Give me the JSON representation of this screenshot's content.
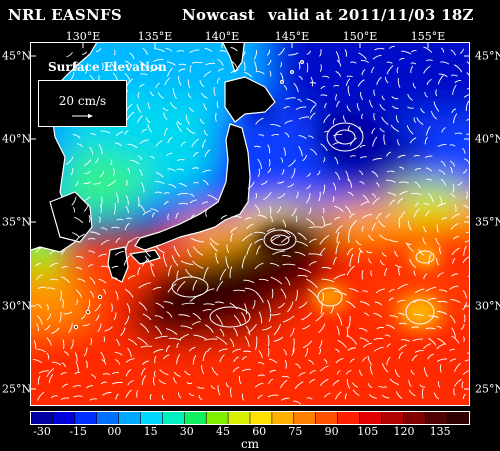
{
  "header": {
    "source": "NRL EASNFS",
    "mode": "Nowcast",
    "valid": "valid at 2011/11/03 18Z"
  },
  "map": {
    "panel_label": "Surface Elevation",
    "vector_scale_label": "20 cm/s",
    "lon_labels": [
      "130°E",
      "135°E",
      "140°E",
      "145°E",
      "150°E",
      "155°E"
    ],
    "lat_labels": [
      "45°N",
      "40°N",
      "35°N",
      "30°N",
      "25°N"
    ],
    "lon_range": [
      125.3,
      158.7
    ],
    "lat_range": [
      22.8,
      45.2
    ]
  },
  "colorbar": {
    "ticks": [
      "-30",
      "-15",
      "00",
      "15",
      "30",
      "45",
      "60",
      "75",
      "90",
      "105",
      "120",
      "135"
    ],
    "unit": "cm",
    "colors": [
      "#0000a0",
      "#0000d8",
      "#0030ff",
      "#0070ff",
      "#00a8ff",
      "#00d8ff",
      "#00f0c0",
      "#10f060",
      "#80f000",
      "#d8f000",
      "#ffe000",
      "#ffb000",
      "#ff8000",
      "#ff5000",
      "#ff2000",
      "#e00000",
      "#b00000",
      "#800000",
      "#500000",
      "#300000"
    ]
  }
}
